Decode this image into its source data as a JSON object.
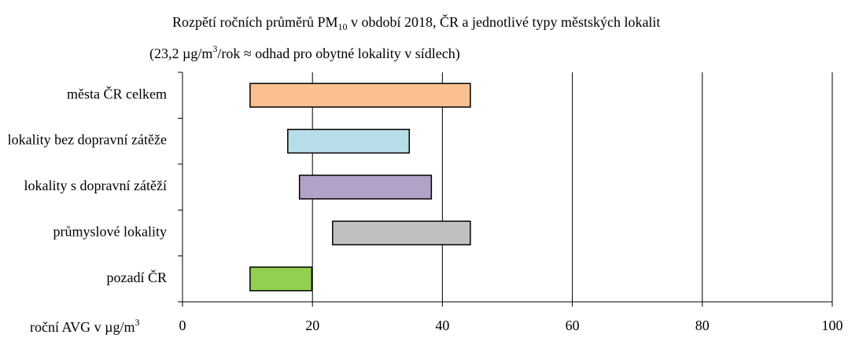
{
  "chart_data": {
    "type": "range-bar",
    "title": [
      "Rozpětí ročních průměrů PM",
      "10",
      " v období  2018, ČR a jednotlivé typy městských lokalit"
    ],
    "subtitle": [
      "(23,2 µg/m",
      "3",
      "/rok ≈ odhad pro obytné lokality v sídlech)"
    ],
    "x_label": [
      "roční AVG v µg/m",
      "3"
    ],
    "categories": [
      "města ČR celkem",
      "lokality bez dopravní zátěže",
      "lokality s dopravní zátěží",
      "průmyslové lokality",
      "pozadí ČR"
    ],
    "start": [
      10.4,
      16.2,
      18.0,
      23.1,
      10.4
    ],
    "end": [
      44.3,
      34.9,
      38.3,
      44.3,
      19.9
    ],
    "colors": [
      "#fac090",
      "#b7dee8",
      "#b3a2c7",
      "#c0c0c0",
      "#92d050"
    ],
    "xlim": [
      0,
      100
    ],
    "xticks": [
      0,
      20,
      40,
      60,
      80,
      100
    ],
    "grid": true
  }
}
